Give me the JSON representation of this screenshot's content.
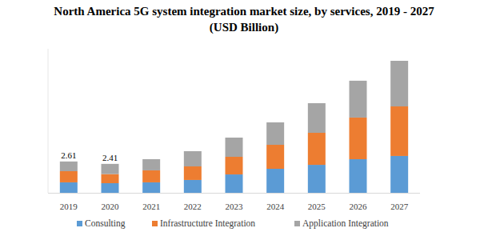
{
  "chart_data": {
    "type": "bar",
    "stacked": true,
    "title": "North America 5G system integration market size, by services, 2019 - 2027",
    "subtitle": "(USD Billion)",
    "categories": [
      "2019",
      "2020",
      "2021",
      "2022",
      "2023",
      "2024",
      "2025",
      "2026",
      "2027"
    ],
    "series": [
      {
        "name": "Consulting",
        "color": "#5b9bd5",
        "values": [
          0.87,
          0.8,
          0.87,
          1.07,
          1.53,
          2.0,
          2.33,
          2.8,
          3.07
        ]
      },
      {
        "name": "Infrastructutre Integration",
        "color": "#ed7d31",
        "values": [
          0.93,
          0.76,
          1.0,
          1.13,
          1.47,
          2.0,
          2.67,
          3.47,
          4.13
        ]
      },
      {
        "name": "Application Integration",
        "color": "#a5a5a5",
        "values": [
          0.81,
          0.85,
          0.93,
          1.27,
          1.6,
          1.87,
          2.47,
          3.07,
          3.8
        ]
      }
    ],
    "annotations": [
      {
        "x": "2019",
        "value": 2.61,
        "label": "2.61"
      },
      {
        "x": "2020",
        "value": 2.41,
        "label": "2.41"
      }
    ],
    "ylim": [
      0,
      12
    ],
    "tick_labels": "x",
    "grid": false,
    "legend": "bottom"
  }
}
